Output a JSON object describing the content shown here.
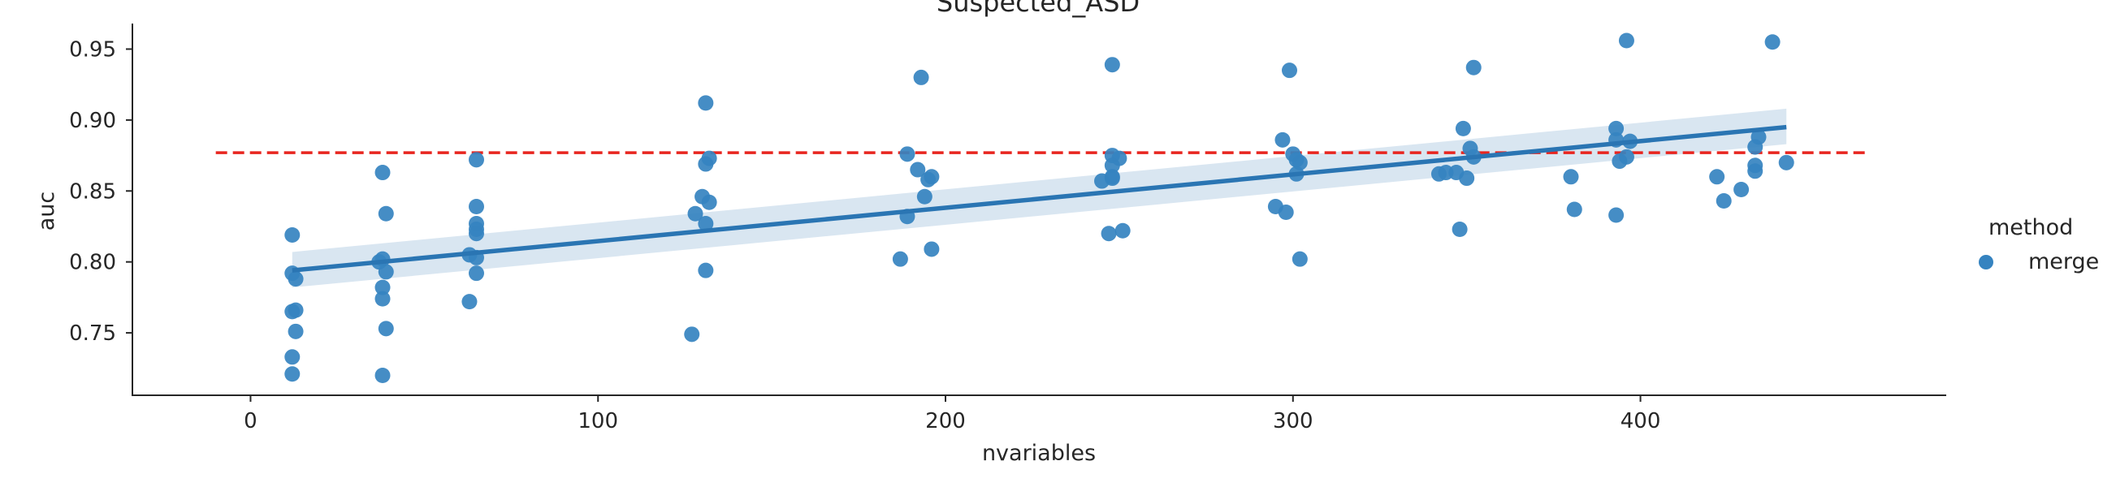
{
  "chart_data": {
    "type": "scatter",
    "title": "Suspected_ASD",
    "xlabel": "nvariables",
    "ylabel": "auc",
    "xlim": [
      -34,
      488
    ],
    "ylim": [
      0.706,
      0.968
    ],
    "xticks": [
      0,
      100,
      200,
      300,
      400
    ],
    "yticks": [
      0.75,
      0.8,
      0.85,
      0.9,
      0.95
    ],
    "xtick_labels": [
      "0",
      "100",
      "200",
      "300",
      "400"
    ],
    "ytick_labels": [
      "0.75",
      "0.80",
      "0.85",
      "0.90",
      "0.95"
    ],
    "grid": false,
    "legend": {
      "title": "method",
      "placement": "right",
      "entries": [
        {
          "name": "merge",
          "color": "#3583c0"
        }
      ]
    },
    "series": [
      {
        "name": "merge",
        "color": "#3583c0",
        "points": [
          [
            12,
            0.819
          ],
          [
            12,
            0.792
          ],
          [
            12,
            0.765
          ],
          [
            12,
            0.733
          ],
          [
            12,
            0.721
          ],
          [
            13,
            0.788
          ],
          [
            13,
            0.766
          ],
          [
            13,
            0.751
          ],
          [
            38,
            0.863
          ],
          [
            39,
            0.834
          ],
          [
            37,
            0.8
          ],
          [
            38,
            0.802
          ],
          [
            39,
            0.793
          ],
          [
            38,
            0.782
          ],
          [
            38,
            0.774
          ],
          [
            39,
            0.753
          ],
          [
            38,
            0.72
          ],
          [
            65,
            0.872
          ],
          [
            65,
            0.839
          ],
          [
            65,
            0.827
          ],
          [
            65,
            0.823
          ],
          [
            65,
            0.82
          ],
          [
            63,
            0.805
          ],
          [
            65,
            0.803
          ],
          [
            65,
            0.792
          ],
          [
            63,
            0.772
          ],
          [
            131,
            0.912
          ],
          [
            132,
            0.873
          ],
          [
            131,
            0.869
          ],
          [
            130,
            0.846
          ],
          [
            132,
            0.842
          ],
          [
            128,
            0.834
          ],
          [
            131,
            0.827
          ],
          [
            131,
            0.794
          ],
          [
            127,
            0.749
          ],
          [
            193,
            0.93
          ],
          [
            189,
            0.876
          ],
          [
            192,
            0.865
          ],
          [
            195,
            0.858
          ],
          [
            196,
            0.86
          ],
          [
            194,
            0.846
          ],
          [
            189,
            0.832
          ],
          [
            196,
            0.809
          ],
          [
            187,
            0.802
          ],
          [
            248,
            0.939
          ],
          [
            248,
            0.875
          ],
          [
            250,
            0.873
          ],
          [
            248,
            0.868
          ],
          [
            248,
            0.86
          ],
          [
            245,
            0.857
          ],
          [
            248,
            0.859
          ],
          [
            247,
            0.82
          ],
          [
            251,
            0.822
          ],
          [
            299,
            0.935
          ],
          [
            297,
            0.886
          ],
          [
            300,
            0.876
          ],
          [
            301,
            0.872
          ],
          [
            302,
            0.87
          ],
          [
            301,
            0.862
          ],
          [
            295,
            0.839
          ],
          [
            298,
            0.835
          ],
          [
            302,
            0.802
          ],
          [
            352,
            0.937
          ],
          [
            349,
            0.894
          ],
          [
            351,
            0.88
          ],
          [
            352,
            0.874
          ],
          [
            342,
            0.862
          ],
          [
            344,
            0.863
          ],
          [
            347,
            0.863
          ],
          [
            350,
            0.859
          ],
          [
            348,
            0.823
          ],
          [
            396,
            0.956
          ],
          [
            393,
            0.894
          ],
          [
            393,
            0.886
          ],
          [
            397,
            0.885
          ],
          [
            396,
            0.874
          ],
          [
            394,
            0.871
          ],
          [
            380,
            0.86
          ],
          [
            381,
            0.837
          ],
          [
            393,
            0.833
          ],
          [
            438,
            0.955
          ],
          [
            434,
            0.888
          ],
          [
            433,
            0.881
          ],
          [
            433,
            0.868
          ],
          [
            433,
            0.864
          ],
          [
            442,
            0.87
          ],
          [
            422,
            0.86
          ],
          [
            424,
            0.843
          ],
          [
            429,
            0.851
          ]
        ]
      }
    ],
    "regression": {
      "x": [
        12,
        442
      ],
      "y": [
        0.794,
        0.895
      ],
      "ci_start": [
        0.782,
        0.807
      ],
      "ci_end": [
        0.883,
        0.908
      ],
      "color": "#2a75b3"
    },
    "reference_line": {
      "y": 0.877,
      "x": [
        -10,
        465
      ],
      "color": "#e8251f",
      "style": "dashed"
    }
  }
}
